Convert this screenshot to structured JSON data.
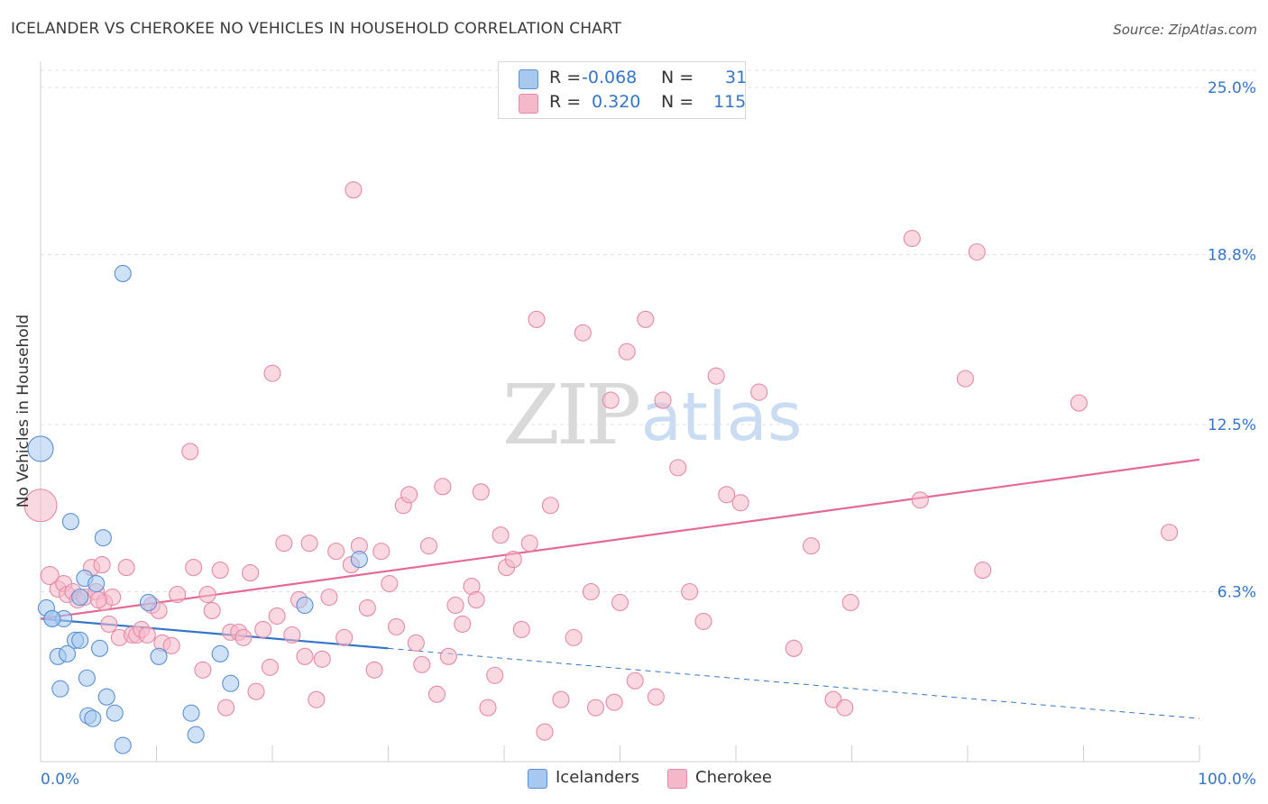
{
  "title": "ICELANDER VS CHEROKEE NO VEHICLES IN HOUSEHOLD CORRELATION CHART",
  "source": "Source: ZipAtlas.com",
  "watermark": {
    "zip": "ZIP",
    "atlas": "atlas"
  },
  "colors": {
    "blue_fill": "#a8c8ee",
    "blue_stroke": "#5a90d4",
    "blue_line": "#3575c8",
    "pink_fill": "#f5b8cb",
    "pink_stroke": "#e58aa6",
    "pink_line": "#e46a96",
    "axis_text": "#3575c8"
  },
  "legend_top": [
    {
      "r_label": "R =",
      "r_value": "-0.068",
      "n_label": "N =",
      "n_value": "31",
      "color": "#a8c8ee",
      "border": "#5a90d4"
    },
    {
      "r_label": "R =",
      "r_value": "0.320",
      "n_label": "N =",
      "n_value": "115",
      "color": "#f5b8cb",
      "border": "#e58aa6"
    }
  ],
  "legend_bottom": [
    {
      "name": "Icelanders",
      "color": "#a8c8ee",
      "border": "#5a90d4"
    },
    {
      "name": "Cherokee",
      "color": "#f5b8cb",
      "border": "#e58aa6"
    }
  ],
  "chart_data": {
    "type": "scatter",
    "title": "ICELANDER VS CHEROKEE NO VEHICLES IN HOUSEHOLD CORRELATION CHART",
    "xlabel": "",
    "ylabel": "No Vehicles in Household",
    "xlim": [
      0,
      100
    ],
    "ylim": [
      0,
      26
    ],
    "x_tick_labels": [
      "0.0%",
      "100.0%"
    ],
    "y_ticks": [
      6.3,
      12.5,
      18.8,
      25.0
    ],
    "y_tick_labels": [
      "6.3%",
      "12.5%",
      "18.8%",
      "25.0%"
    ],
    "grid": true,
    "legend_position": "bottom-center",
    "series": [
      {
        "name": "Icelanders",
        "r": -0.068,
        "n": 31,
        "trend": {
          "x0": 0,
          "y0": 5.3,
          "x1": 30,
          "y1": 4.2,
          "dash_to_x": 100,
          "dash_to_y": 1.6
        },
        "points": [
          [
            0.0,
            11.6,
            14
          ],
          [
            0.5,
            5.7,
            9
          ],
          [
            1.0,
            5.3,
            9
          ],
          [
            1.5,
            3.9,
            9
          ],
          [
            1.7,
            2.7,
            9
          ],
          [
            2.0,
            5.3,
            9
          ],
          [
            2.3,
            4.0,
            9
          ],
          [
            2.6,
            8.9,
            9
          ],
          [
            3.0,
            4.5,
            9
          ],
          [
            3.4,
            4.5,
            9
          ],
          [
            3.4,
            6.1,
            9
          ],
          [
            3.8,
            6.8,
            9
          ],
          [
            4.0,
            3.1,
            9
          ],
          [
            4.1,
            1.7,
            9
          ],
          [
            4.5,
            1.6,
            9
          ],
          [
            4.8,
            6.6,
            9
          ],
          [
            5.1,
            4.2,
            9
          ],
          [
            5.4,
            8.3,
            9
          ],
          [
            5.7,
            2.4,
            9
          ],
          [
            6.4,
            1.8,
            9
          ],
          [
            7.1,
            18.1,
            9
          ],
          [
            7.1,
            0.6,
            9
          ],
          [
            9.3,
            5.9,
            9
          ],
          [
            10.2,
            3.9,
            9
          ],
          [
            13.0,
            1.8,
            9
          ],
          [
            13.4,
            1.0,
            9
          ],
          [
            15.5,
            4.0,
            9
          ],
          [
            16.4,
            2.9,
            9
          ],
          [
            22.8,
            5.8,
            9
          ],
          [
            27.5,
            7.5,
            9
          ],
          [
            1.0,
            5.3,
            9
          ]
        ]
      },
      {
        "name": "Cherokee",
        "r": 0.32,
        "n": 115,
        "trend": {
          "x0": 0,
          "y0": 5.3,
          "x1": 100,
          "y1": 11.2
        },
        "points": [
          [
            0.0,
            9.5,
            18
          ],
          [
            0.8,
            6.9,
            10
          ],
          [
            1.5,
            6.4,
            9
          ],
          [
            2.0,
            6.6,
            9
          ],
          [
            2.3,
            6.2,
            9
          ],
          [
            2.8,
            6.3,
            9
          ],
          [
            3.2,
            6.0,
            9
          ],
          [
            3.8,
            6.1,
            9
          ],
          [
            4.4,
            7.2,
            9
          ],
          [
            4.8,
            6.3,
            9
          ],
          [
            5.3,
            7.3,
            9
          ],
          [
            5.5,
            5.9,
            9
          ],
          [
            5.9,
            5.1,
            9
          ],
          [
            6.2,
            6.1,
            9
          ],
          [
            6.8,
            4.6,
            9
          ],
          [
            7.4,
            7.2,
            9
          ],
          [
            7.9,
            4.7,
            9
          ],
          [
            8.3,
            4.7,
            9
          ],
          [
            8.7,
            4.9,
            9
          ],
          [
            9.2,
            4.7,
            9
          ],
          [
            9.6,
            5.8,
            9
          ],
          [
            10.2,
            5.6,
            9
          ],
          [
            10.5,
            4.4,
            9
          ],
          [
            11.3,
            4.3,
            9
          ],
          [
            11.8,
            6.2,
            9
          ],
          [
            12.9,
            11.5,
            9
          ],
          [
            13.2,
            7.2,
            9
          ],
          [
            14.0,
            3.4,
            9
          ],
          [
            14.4,
            6.2,
            9
          ],
          [
            14.8,
            5.6,
            9
          ],
          [
            15.5,
            7.1,
            9
          ],
          [
            16.0,
            2.0,
            9
          ],
          [
            16.4,
            4.8,
            9
          ],
          [
            17.1,
            4.8,
            9
          ],
          [
            17.5,
            4.6,
            9
          ],
          [
            18.1,
            7.0,
            9
          ],
          [
            18.6,
            2.6,
            9
          ],
          [
            19.2,
            4.9,
            9
          ],
          [
            19.8,
            3.5,
            9
          ],
          [
            20.4,
            5.4,
            9
          ],
          [
            21.0,
            8.1,
            9
          ],
          [
            21.7,
            4.7,
            9
          ],
          [
            22.3,
            6.0,
            9
          ],
          [
            22.8,
            3.9,
            9
          ],
          [
            23.2,
            8.1,
            9
          ],
          [
            23.8,
            2.3,
            9
          ],
          [
            24.3,
            3.8,
            9
          ],
          [
            24.9,
            6.1,
            9
          ],
          [
            25.5,
            7.8,
            9
          ],
          [
            26.2,
            4.6,
            9
          ],
          [
            26.8,
            7.3,
            9
          ],
          [
            27.5,
            8.0,
            9
          ],
          [
            28.2,
            5.7,
            9
          ],
          [
            28.8,
            3.4,
            9
          ],
          [
            29.4,
            7.8,
            9
          ],
          [
            30.1,
            6.6,
            9
          ],
          [
            30.7,
            5.0,
            9
          ],
          [
            31.3,
            9.5,
            9
          ],
          [
            31.8,
            9.9,
            9
          ],
          [
            32.4,
            4.4,
            9
          ],
          [
            32.9,
            3.6,
            9
          ],
          [
            33.5,
            8.0,
            9
          ],
          [
            34.2,
            2.5,
            9
          ],
          [
            34.7,
            10.2,
            9
          ],
          [
            35.2,
            3.9,
            9
          ],
          [
            35.8,
            5.8,
            9
          ],
          [
            36.4,
            5.1,
            9
          ],
          [
            37.2,
            6.5,
            9
          ],
          [
            37.6,
            6.0,
            9
          ],
          [
            38.0,
            10.0,
            9
          ],
          [
            38.6,
            2.0,
            9
          ],
          [
            39.2,
            3.2,
            9
          ],
          [
            39.7,
            8.4,
            9
          ],
          [
            40.2,
            7.2,
            9
          ],
          [
            40.8,
            7.5,
            9
          ],
          [
            41.5,
            4.9,
            9
          ],
          [
            42.2,
            8.1,
            9
          ],
          [
            42.8,
            16.4,
            9
          ],
          [
            43.5,
            1.1,
            9
          ],
          [
            44.0,
            9.5,
            9
          ],
          [
            44.9,
            2.3,
            9
          ],
          [
            46.0,
            4.6,
            9
          ],
          [
            46.8,
            15.9,
            9
          ],
          [
            47.5,
            6.3,
            9
          ],
          [
            47.9,
            2.0,
            9
          ],
          [
            49.2,
            13.4,
            9
          ],
          [
            49.5,
            2.2,
            9
          ],
          [
            50.0,
            5.9,
            9
          ],
          [
            50.6,
            15.2,
            9
          ],
          [
            51.3,
            3.0,
            9
          ],
          [
            52.2,
            16.4,
            9
          ],
          [
            53.1,
            2.4,
            9
          ],
          [
            53.7,
            13.4,
            9
          ],
          [
            55.0,
            10.9,
            9
          ],
          [
            56.0,
            6.3,
            9
          ],
          [
            57.2,
            5.2,
            9
          ],
          [
            58.3,
            14.3,
            9
          ],
          [
            59.2,
            9.9,
            9
          ],
          [
            60.4,
            9.6,
            9
          ],
          [
            62.0,
            13.7,
            9
          ],
          [
            65.0,
            4.2,
            9
          ],
          [
            66.5,
            8.0,
            9
          ],
          [
            68.4,
            2.3,
            9
          ],
          [
            69.4,
            2.0,
            9
          ],
          [
            69.9,
            5.9,
            9
          ],
          [
            75.2,
            19.4,
            9
          ],
          [
            75.9,
            9.7,
            9
          ],
          [
            79.8,
            14.2,
            9
          ],
          [
            80.8,
            18.9,
            9
          ],
          [
            81.3,
            7.1,
            9
          ],
          [
            89.6,
            13.3,
            9
          ],
          [
            97.4,
            8.5,
            9
          ],
          [
            5.0,
            6.0,
            9
          ],
          [
            20.0,
            14.4,
            9
          ],
          [
            27.0,
            21.2,
            9
          ]
        ]
      }
    ]
  }
}
